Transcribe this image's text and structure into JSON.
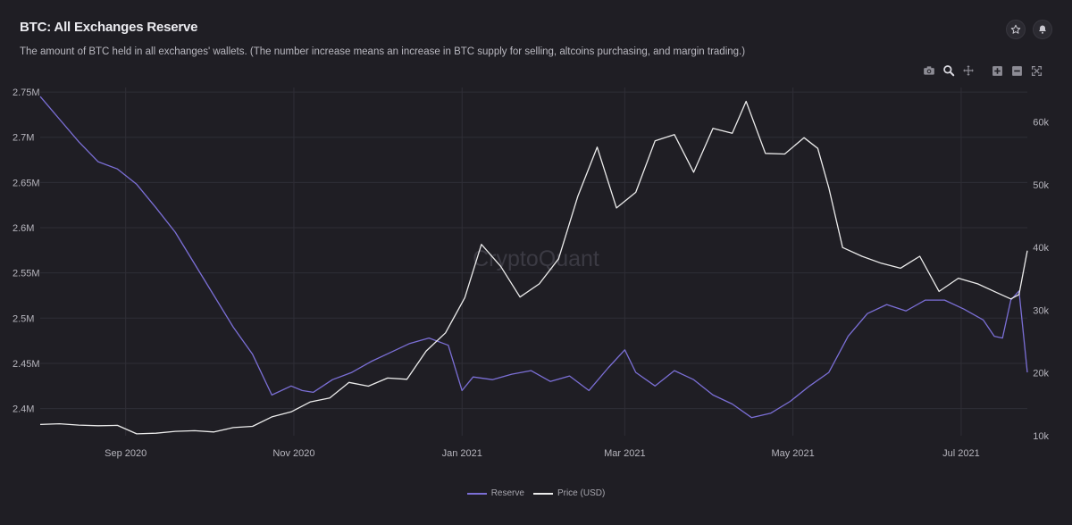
{
  "header": {
    "title": "BTC: All Exchanges Reserve",
    "subtitle": "The amount of BTC held in all exchanges' wallets. (The number increase means an increase in BTC supply for selling, altcoins purchasing, and margin trading.)"
  },
  "icons": {
    "favorite": "star-icon",
    "alert": "bell-icon",
    "toolbar": [
      "camera-icon",
      "zoom-icon",
      "pan-icon",
      "zoom-in-icon",
      "zoom-out-icon",
      "reset-axes-icon"
    ]
  },
  "watermark": "CryptoQuant",
  "colors": {
    "background": "#1f1e24",
    "reserve": "#7b6fd6",
    "price": "#ececec",
    "grid": "#2f2e36"
  },
  "chart_data": {
    "type": "line",
    "x_tick_labels": [
      "Sep 2020",
      "Nov 2020",
      "Jan 2021",
      "Mar 2021",
      "May 2021",
      "Jul 2021"
    ],
    "x_ticks": [
      "2020-09-01",
      "2020-11-01",
      "2021-01-01",
      "2021-03-01",
      "2021-05-01",
      "2021-07-01"
    ],
    "xlim": [
      "2020-08-01",
      "2021-07-25"
    ],
    "y_left": {
      "ticks": [
        2400000,
        2450000,
        2500000,
        2550000,
        2600000,
        2650000,
        2700000,
        2750000
      ],
      "tick_labels": [
        "2.4M",
        "2.45M",
        "2.5M",
        "2.55M",
        "2.6M",
        "2.65M",
        "2.7M",
        "2.75M"
      ],
      "ylim": [
        2370000,
        2755000
      ]
    },
    "y_right": {
      "ticks": [
        10000,
        20000,
        30000,
        40000,
        50000,
        60000
      ],
      "tick_labels": [
        "10k",
        "20k",
        "30k",
        "40k",
        "50k",
        "60k"
      ],
      "ylim": [
        10000,
        65500
      ]
    },
    "series": [
      {
        "name": "Reserve",
        "axis": "left",
        "x": [
          "2020-08-01",
          "2020-08-08",
          "2020-08-15",
          "2020-08-22",
          "2020-08-29",
          "2020-09-05",
          "2020-09-12",
          "2020-09-19",
          "2020-09-26",
          "2020-10-03",
          "2020-10-10",
          "2020-10-17",
          "2020-10-24",
          "2020-10-31",
          "2020-11-04",
          "2020-11-08",
          "2020-11-15",
          "2020-11-22",
          "2020-11-29",
          "2020-12-06",
          "2020-12-13",
          "2020-12-20",
          "2020-12-27",
          "2021-01-01",
          "2021-01-05",
          "2021-01-12",
          "2021-01-19",
          "2021-01-26",
          "2021-02-02",
          "2021-02-09",
          "2021-02-16",
          "2021-02-23",
          "2021-03-01",
          "2021-03-05",
          "2021-03-12",
          "2021-03-19",
          "2021-03-26",
          "2021-04-02",
          "2021-04-09",
          "2021-04-16",
          "2021-04-23",
          "2021-04-30",
          "2021-05-07",
          "2021-05-14",
          "2021-05-21",
          "2021-05-28",
          "2021-06-04",
          "2021-06-11",
          "2021-06-18",
          "2021-06-25",
          "2021-07-02",
          "2021-07-09",
          "2021-07-13",
          "2021-07-16",
          "2021-07-19",
          "2021-07-22",
          "2021-07-25"
        ],
        "values": [
          2745000,
          2720000,
          2695000,
          2673000,
          2665000,
          2648000,
          2622000,
          2595000,
          2560000,
          2525000,
          2490000,
          2460000,
          2415000,
          2425000,
          2420000,
          2418000,
          2432000,
          2440000,
          2452000,
          2462000,
          2472000,
          2478000,
          2470000,
          2420000,
          2435000,
          2432000,
          2438000,
          2442000,
          2430000,
          2436000,
          2420000,
          2445000,
          2465000,
          2440000,
          2425000,
          2442000,
          2432000,
          2415000,
          2405000,
          2390000,
          2395000,
          2408000,
          2425000,
          2440000,
          2480000,
          2505000,
          2515000,
          2508000,
          2520000,
          2520000,
          2510000,
          2498000,
          2480000,
          2478000,
          2520000,
          2530000,
          2440000
        ]
      },
      {
        "name": "Price (USD)",
        "axis": "right",
        "x": [
          "2020-08-01",
          "2020-08-08",
          "2020-08-15",
          "2020-08-22",
          "2020-08-29",
          "2020-09-05",
          "2020-09-12",
          "2020-09-19",
          "2020-09-26",
          "2020-10-03",
          "2020-10-10",
          "2020-10-17",
          "2020-10-24",
          "2020-10-31",
          "2020-11-07",
          "2020-11-14",
          "2020-11-21",
          "2020-11-28",
          "2020-12-05",
          "2020-12-12",
          "2020-12-19",
          "2020-12-26",
          "2021-01-02",
          "2021-01-08",
          "2021-01-15",
          "2021-01-22",
          "2021-01-29",
          "2021-02-05",
          "2021-02-12",
          "2021-02-19",
          "2021-02-26",
          "2021-03-05",
          "2021-03-12",
          "2021-03-19",
          "2021-03-26",
          "2021-04-02",
          "2021-04-09",
          "2021-04-14",
          "2021-04-21",
          "2021-04-28",
          "2021-05-05",
          "2021-05-10",
          "2021-05-14",
          "2021-05-19",
          "2021-05-26",
          "2021-06-02",
          "2021-06-09",
          "2021-06-16",
          "2021-06-23",
          "2021-06-30",
          "2021-07-07",
          "2021-07-14",
          "2021-07-19",
          "2021-07-22",
          "2021-07-25"
        ],
        "values": [
          11800,
          11900,
          11700,
          11600,
          11650,
          10300,
          10400,
          10700,
          10800,
          10600,
          11300,
          11500,
          13000,
          13800,
          15400,
          16000,
          18500,
          17900,
          19200,
          19000,
          23500,
          26400,
          32000,
          40500,
          37000,
          32100,
          34200,
          38200,
          48200,
          56000,
          46300,
          48800,
          57000,
          58000,
          52000,
          59000,
          58200,
          63300,
          55000,
          54900,
          57500,
          55800,
          49500,
          40000,
          38600,
          37500,
          36700,
          38600,
          33000,
          35100,
          34200,
          32800,
          31800,
          32500,
          39500
        ]
      }
    ]
  },
  "legend": [
    {
      "label": "Reserve",
      "color": "#7b6fd6"
    },
    {
      "label": "Price (USD)",
      "color": "#ececec"
    }
  ]
}
